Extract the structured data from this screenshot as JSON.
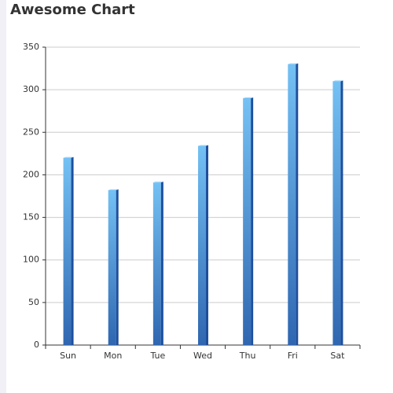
{
  "chart_data": {
    "type": "bar",
    "title": "Awesome Chart",
    "categories": [
      "Sun",
      "Mon",
      "Tue",
      "Wed",
      "Thu",
      "Fri",
      "Sat"
    ],
    "values": [
      220,
      182,
      191,
      234,
      290,
      330,
      310
    ],
    "gradient": [
      "#74c1f4",
      "#2f66b0"
    ],
    "side_color": "#1d4f9e",
    "top_color": "#8fd0f8",
    "ylim": [
      0,
      350
    ],
    "yticks": [
      0,
      50,
      100,
      150,
      200,
      250,
      300,
      350
    ],
    "grid": true
  }
}
